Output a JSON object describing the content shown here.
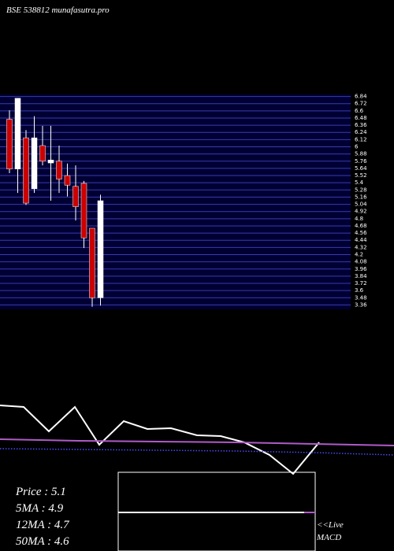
{
  "chart_data": {
    "type": "candlestick",
    "title": "BSE 538812 munafasutra.pro",
    "up_color": "#ffffff",
    "down_color": "#cc0000",
    "grid_color": "#3a3ab0",
    "open": [
      6.46,
      5.63,
      6.15,
      5.3,
      6.02,
      5.73,
      5.76,
      5.52,
      5.34,
      5.39,
      4.64,
      3.48
    ],
    "high": [
      6.61,
      6.81,
      6.28,
      6.51,
      6.35,
      6.35,
      6.02,
      5.72,
      5.69,
      5.43,
      4.64,
      5.2
    ],
    "low": [
      5.56,
      5.23,
      5.03,
      5.23,
      5.69,
      5.1,
      5.23,
      5.17,
      4.77,
      4.31,
      3.33,
      3.35
    ],
    "close": [
      5.63,
      6.81,
      5.06,
      6.15,
      5.76,
      5.78,
      5.46,
      5.36,
      5.0,
      4.48,
      3.48,
      5.1
    ],
    "ylim": [
      3.3,
      6.9
    ],
    "yticks": [
      3.36,
      3.48,
      3.6,
      3.72,
      3.84,
      3.96,
      4.08,
      4.2,
      4.32,
      4.44,
      4.56,
      4.68,
      4.8,
      4.92,
      5.04,
      5.16,
      5.28,
      5.4,
      5.52,
      5.64,
      5.76,
      5.88,
      6,
      6.12,
      6.24,
      6.36,
      6.48,
      6.6,
      6.72,
      6.84
    ],
    "grid": true,
    "indicator": {
      "ylim": [
        -10,
        100
      ],
      "series": [
        {
          "color": "#ffffff",
          "style": "solid",
          "values": [
            85,
            83,
            52,
            83,
            35,
            65,
            55,
            56,
            47,
            46,
            38,
            22,
            -2,
            38
          ]
        },
        {
          "color": "#b05ac8",
          "style": "solid",
          "values": [
            42,
            40,
            39,
            38,
            36,
            34
          ]
        },
        {
          "color": "#4a4aff",
          "style": "dotted",
          "values": [
            30,
            29,
            28,
            27,
            25,
            22
          ]
        }
      ]
    },
    "stats": [
      "Price   : 5.1",
      "5MA : 4.9",
      "12MA : 4.7",
      "50MA : 4.6"
    ],
    "live_macd": [
      "<<Live",
      "MACD"
    ]
  }
}
